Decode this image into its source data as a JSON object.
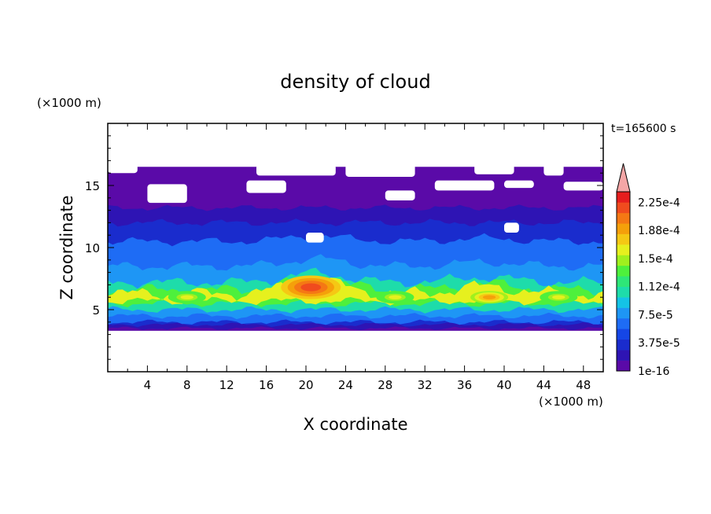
{
  "chart_data": {
    "type": "heatmap",
    "title": "density of cloud",
    "xlabel": "X coordinate",
    "ylabel": "Z coordinate",
    "x_unit": "(×1000 m)",
    "y_unit": "(×1000 m)",
    "time_label": "t=165600 s",
    "xlim": [
      0,
      50
    ],
    "ylim": [
      0,
      20
    ],
    "x_ticks": [
      4,
      8,
      12,
      16,
      20,
      24,
      28,
      32,
      36,
      40,
      44,
      48
    ],
    "y_ticks": [
      5,
      10,
      15
    ],
    "colorbar": {
      "labels": [
        "1e-16",
        "3.75e-5",
        "7.5e-5",
        "1.12e-4",
        "1.5e-4",
        "1.88e-4",
        "2.25e-4"
      ],
      "colors": [
        "#5a0aa8",
        "#2e14b4",
        "#1a2ccd",
        "#1546e6",
        "#1e6cf5",
        "#1e96f5",
        "#14c3e6",
        "#1edcaa",
        "#2ee678",
        "#4ef03c",
        "#a0f01e",
        "#e6f01e",
        "#f5c814",
        "#f5a00a",
        "#f57814",
        "#f04b1e",
        "#e61e1e"
      ],
      "extend_color": "#f4a6a6"
    },
    "layers": [
      {
        "z_bottom": 3.3,
        "z_top": 16.5,
        "level": 0,
        "note": "cloud envelope"
      },
      {
        "z_bottom": 3.5,
        "z_top": 13.2,
        "level": 1
      },
      {
        "z_bottom": 3.8,
        "z_top": 12.0,
        "level": 2
      },
      {
        "z_bottom": 4.0,
        "z_top": 10.5,
        "level": 4
      },
      {
        "z_bottom": 4.5,
        "z_top": 8.5,
        "level": 5
      },
      {
        "z_bottom": 5.0,
        "z_top": 7.2,
        "level": 7
      },
      {
        "z_bottom": 5.5,
        "z_top": 6.6,
        "level": 9
      },
      {
        "z_bottom": 5.7,
        "z_top": 6.3,
        "level": 11
      }
    ],
    "maxima": [
      {
        "x": 20.5,
        "z": 6.8,
        "level": 15
      },
      {
        "x": 38.5,
        "z": 6.0,
        "level": 13
      },
      {
        "x": 8.0,
        "z": 6.0,
        "level": 11
      },
      {
        "x": 29.0,
        "z": 6.0,
        "level": 11
      },
      {
        "x": 45.5,
        "z": 6.0,
        "level": 11
      }
    ]
  }
}
